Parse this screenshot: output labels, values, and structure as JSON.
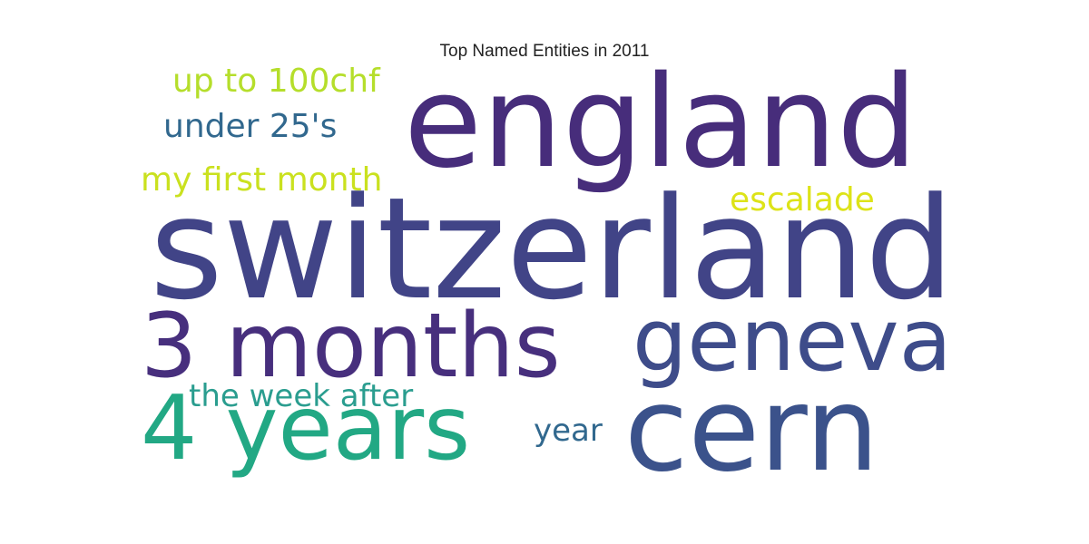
{
  "chart_data": {
    "type": "wordcloud",
    "title": "Top Named Entities in 2011",
    "words": [
      {
        "text": "switzerland",
        "color": "#414487"
      },
      {
        "text": "england",
        "color": "#472d7b"
      },
      {
        "text": "cern",
        "color": "#3b528b"
      },
      {
        "text": "geneva",
        "color": "#3e4c8a"
      },
      {
        "text": "3 months",
        "color": "#472f7d"
      },
      {
        "text": "4 years",
        "color": "#22a884"
      },
      {
        "text": "the week after",
        "color": "#2a9d8f"
      },
      {
        "text": "year",
        "color": "#31688e"
      },
      {
        "text": "up to 100chf",
        "color": "#b5de2b"
      },
      {
        "text": "under 25's",
        "color": "#31688e"
      },
      {
        "text": "my first month",
        "color": "#cae11f"
      },
      {
        "text": "escalade",
        "color": "#dde318"
      }
    ]
  }
}
